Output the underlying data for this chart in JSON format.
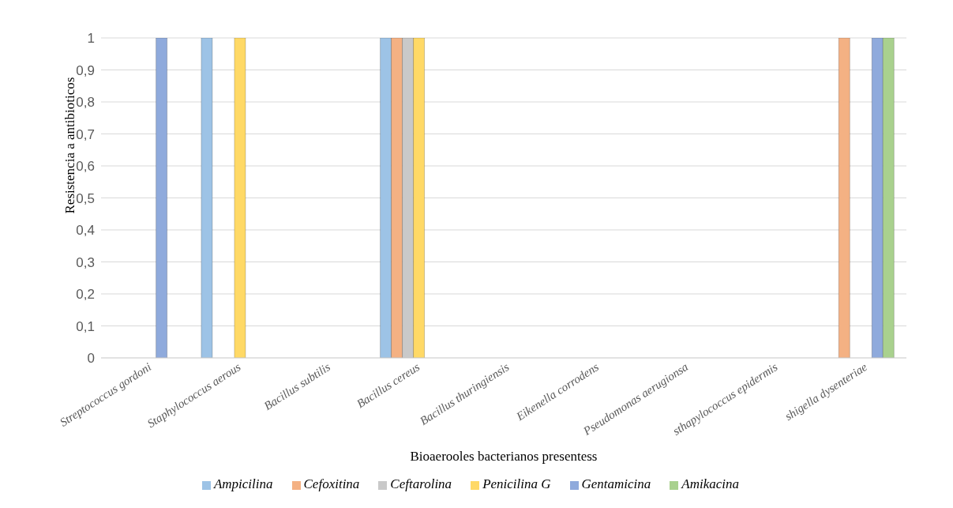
{
  "chart_data": {
    "type": "bar",
    "xlabel": "Bioaerooles bacterianos presentess",
    "ylabel": "Resistencia  a antibioticos",
    "categories": [
      "Streptococcus gordoni",
      "Staphylococcus aerous",
      "Bacillus subtilis",
      "Bacillus cereus",
      "Bacillus thuringiensis",
      "Eikenella corrodens",
      "Pseudomonas aerugionsa",
      "sthapylococcus epidermis",
      "shigella dysenteriae"
    ],
    "series": [
      {
        "name": "Ampicilina",
        "color": "#9dc3e6",
        "values": [
          0,
          1,
          0,
          1,
          0,
          0,
          0,
          0,
          0
        ]
      },
      {
        "name": "Cefoxitina",
        "color": "#f4b183",
        "values": [
          0,
          0,
          0,
          1,
          0,
          0,
          0,
          0,
          1
        ]
      },
      {
        "name": "Ceftarolina",
        "color": "#c9c9c9",
        "values": [
          0,
          0,
          0,
          1,
          0,
          0,
          0,
          0,
          0
        ]
      },
      {
        "name": "Penicilina G",
        "color": "#ffd966",
        "values": [
          0,
          1,
          0,
          1,
          0,
          0,
          0,
          0,
          0
        ]
      },
      {
        "name": "Gentamicina",
        "color": "#8faadc",
        "values": [
          1,
          0,
          0,
          0,
          0,
          0,
          0,
          0,
          1
        ]
      },
      {
        "name": "Amikacina",
        "color": "#a9d18e",
        "values": [
          0,
          0,
          0,
          0,
          0,
          0,
          0,
          0,
          1
        ]
      }
    ],
    "ylim": [
      0,
      1
    ],
    "yticks": [
      0,
      {
        "value": 0.1,
        "label": "0,1"
      },
      {
        "value": 0.2,
        "label": "0,2"
      },
      {
        "value": 0.3,
        "label": "0,3"
      },
      {
        "value": 0.4,
        "label": "0,4"
      },
      {
        "value": 0.5,
        "label": "0,5"
      },
      {
        "value": 0.6,
        "label": "0,6"
      },
      {
        "value": 0.7,
        "label": "0,7"
      },
      {
        "value": 0.8,
        "label": "0,8"
      },
      {
        "value": 0.9,
        "label": "0,9"
      },
      1
    ],
    "grid": "y",
    "legend": "bottom"
  }
}
